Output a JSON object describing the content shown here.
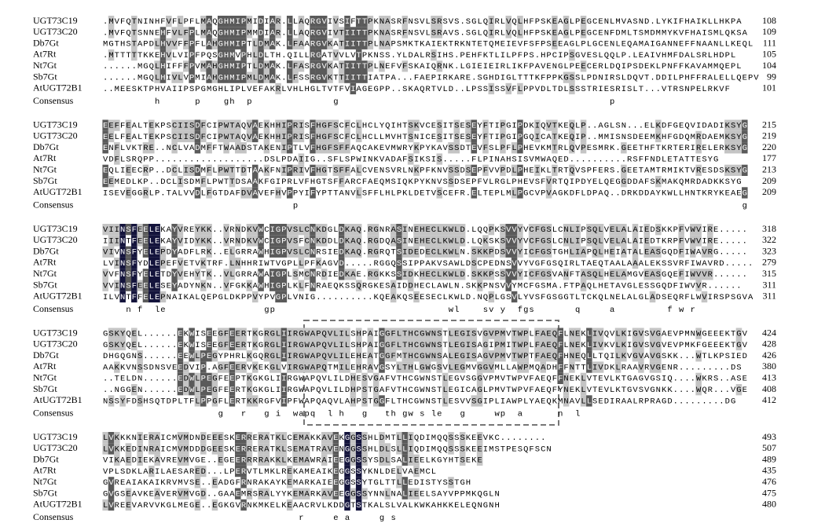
{
  "blocks": [
    {
      "rows": [
        {
          "name": "UGT73C19",
          "sequence": ".MVFQTNINHFVFLPFLMAQGHMIPMIDIAR.LLAQRGVIVSIFTTPKNASRFNSVLSRSVS.SGLQIRLVQLHFPSKEAGLPEGCENLMVASND.LYKIFHAIKLLHKPA",
          "end": "108"
        },
        {
          "name": "UGT73C20",
          "sequence": ".MVFQTSNNEHFVLFPLMAQGHMIPMMDIAR.LLAQRGVIVTIITTPKNASRFNSVLSRAVS.SGLQIRLVQLHFPSKEAGLPEGCENFDMLTSMDMMYKVFHAISMLQKSA",
          "end": "109"
        },
        {
          "name": "Db7Gt",
          "sequence": "MGTHSTAPDLHVVFFPFLAHGHMIPTLDMAK.LFAARGVKATIITTPLNAPSMKTKAIEKTRKNTETQMEIEVFSFPSEEAGLPLGCENLEQAMAIGANNEFFNAANLLKEQL",
          "end": "111"
        },
        {
          "name": "At7Rt",
          "sequence": ".MTTTTTKKEHVLVIPFPQSGHMVPHLDLTH.QILLRGATVVLVTPKNSS.YLDALRSIHS.PEHFKTLILPFPS.HPCIPSGVESLQQLP.LEAIVHMFDALSRLHDPL",
          "end": "105"
        },
        {
          "name": "Nt7Gt",
          "sequence": "......MGQLHIFFFPVMAHGHMIPTLDMAK.LFASRGVKATIITTPLNEFVFSKAIQRNK.LGIEIEIRLIKFPAVENGLPEECERLDQIPSDEKLPNFFKAVAMMQEPL",
          "end": "104"
        },
        {
          "name": "Sb7Gt",
          "sequence": "......MGQLHIVLVPMIAHGHMIPMLDMAK.LFSSRGVKTTIITTIATPA...FAEPIRKARE.SGHDIGLTTTKFPPKGSSLPDNIRSLDQVT.DDILPHFFRALELLQEPV",
          "end": "99"
        },
        {
          "name": "AtUGT72B1",
          "sequence": "..MEESKTPHVAIIPSPGMGHLIPLVEFAKRLVHLHGLTVTFVIAGEGPP..SKAQRTVLD..LPSSISSVFLPPVDLTDLSSSTRIESRISLT...VTRSNPELRKVF",
          "end": "101"
        }
      ],
      "consensus_label": "Consensus",
      "consensus": "         h      p    gh  p              g                                               p"
    },
    {
      "rows": [
        {
          "name": "UGT73C19",
          "sequence": "EEFFEALTEKPSCIISDFCIPWTAQVAEKHHIPRISFHGFSCFCLHCLYQIHTSKVCESITSESEYFTIPGIPDKIQVTKEQLP..AGLSN...ELKDFGEQVIDADIKSYG",
          "end": "215"
        },
        {
          "name": "UGT73C20",
          "sequence": "EELFEALTEKPSCIISDFCIPWTAQVAEKHHIPRISFHGFSCFCLHCLLMVHTSNICESITSESEYFTIPGIPGQICATKEQIP..MMISNSDEEMKHFGDQMRDAEMKSYG",
          "end": "219"
        },
        {
          "name": "Db7Gt",
          "sequence": "ENFLVKTRE..NCLVADMFFTWAADSTAKENIPTLVFHGFSFFAQCAKEVMWRYKPYKAVSSDTEVFSLPFLPHEVKMTRLQVPESMRK.GEETHFTKRTERIRELERKSYG",
          "end": "220"
        },
        {
          "name": "At7Rt",
          "sequence": "VDFLSRQPP...................DSLPDAIIG..SFLSPWINKVADAFSIKSIS.....FLPINAHSISVMWAQED..........RSFFNDLETATTESYG",
          "end": "177"
        },
        {
          "name": "Nt7Gt",
          "sequence": "EQLIEECRP..DCLISDMFLPWTTDTAAKFNIPRIVFHGTSFFALCVENSVRLNKPFKNVSSDSEPFVVPDLPHEIKLTRTQVSPFERS.GEETAMTRMIKTVRESDSKSYG",
          "end": "213"
        },
        {
          "name": "Sb7Gt",
          "sequence": "EEMEDLKP..DCLISDMFLPWTTDSAAKFGIPRLVFHGTSFFARCFAEQMSIQKPYKNVSSDSEPFVLRGLPHEVSFVRTQIPDYELQEGGDDAFSKMAKQMRDADKKSYG",
          "end": "209"
        },
        {
          "name": "AtUGT72B1",
          "sequence": "ISEVEGGRLP.TALVVDLFGTDAFDVAVEFHVPPYIFYPTTANVLSFFLHLPKLDETVSCEFR.ELTEPLMLPGCVPVAGKDFLDPAQ..DRKDDAYKWLLHNTKRYKEAEG",
          "end": "209"
        }
      ],
      "consensus_label": "Consensus",
      "consensus": "                                 p                                                                             g"
    },
    {
      "rows": [
        {
          "name": "UGT73C19",
          "sequence": "VIINSFEELEKAYVREYKK..VRNDKVWCIGPVSLCNKDGLDKAQ.RGNRASINEHECLKWLD.LQQPKSVVYVCFGSLCNLIPSQLVELALAIEDSKKPFVWVIRE.....",
          "end": "318"
        },
        {
          "name": "UGT73C20",
          "sequence": "IIINTFEELEKAYVIDYKK..VRNDKVWCIGPVSFCNKDDLDKAQ.RGDQASINEHECLKWLD.LQKSKSVVYVCFGSLCNLIPSQLVELALAIEDTKRPFVWVIRE.....",
          "end": "322"
        },
        {
          "name": "Db7Gt",
          "sequence": "VIVNSFYELEPDYADFLRK..ELGRRAWHIGPVSLCNRSIEDKAQ.RGRQTSIDEDECLKWLN.SKKPDSVVYICFGSTGHLIAPQLHEIATALEASGQDFIWAVRG.....",
          "end": "323"
        },
        {
          "name": "At7Rt",
          "sequence": "LVINSFYDLEPEFVETVKTRF.LNHHRIWTVGPLLPFKAGVD.....RGGQSSIPPAKVSAWLDSCPEDNSVVYVGFGSQIRLTAEQTAALAAALEKSSVRFIWAVRD.....",
          "end": "279"
        },
        {
          "name": "Nt7Gt",
          "sequence": "VVFNSFYELETDYVEHYTK..VLGRRAWAIGPLSMCNRDIEDKAE.RGKKSSIDKHECLKWLD.SKKPSSVVYICFGSVANFTASQLHELAMGVEASGQEFIWVVR......",
          "end": "315"
        },
        {
          "name": "Sb7Gt",
          "sequence": "VVINSFEELESEYADYNKN..VFGKKAWHIGPLKLFNRAEQKSSQRGKESAIDDHECLAWLN.SKKPNSVVYMCFGSMA.FTPAQLHETAVGLESSGQDFIWVVR......",
          "end": "311"
        },
        {
          "name": "AtUGT72B1",
          "sequence": "ILVNTFFELEPNAIKALQEPGLDKPPVYPVGPLVNIG..........KQEAKQSEESECLKWLD.NQPLGSVLYVSFGSGGTLTCKQLNELALGLADSEQRFLWVIRSPSGVA",
          "end": "311"
        }
      ],
      "consensus_label": "Consensus",
      "consensus": "    n f  le                 gp                              wl    sv y  fgs       q     a         f w r"
    },
    {
      "rows": [
        {
          "name": "UGT73C19",
          "sequence": "GSKYQEL......EKWISEEGFEERTKGRGLIIRGWAPQVLILSHPAIGGFLTHCGWNSTLEGISVGVPMVTWPLFAEQFLNEKLIVQVLKIGVSVGAEVPMNWGEEEKTGV",
          "end": "424"
        },
        {
          "name": "UGT73C20",
          "sequence": "GSKYQEL......EKWISEEGFEERTKGRGLIIRGWAPQVLILSHPAIGGFLTHCGWNSTLEGISAGIPMITWPLFAEQFLNEKLIVKVLKIGVSVGVEVPMKFGEEEKTGV",
          "end": "428"
        },
        {
          "name": "Db7Gt",
          "sequence": "DHGQGNS......EEWLPEGYPHRLKGQRGLIIRGWAPQVLILEHEATGGFMTHCGWNSALEGISAGVPMVTWPTFAEQFHNEQLLTQILKVGVAVGSKK...WTLKPSIED",
          "end": "426"
        },
        {
          "name": "At7Rt",
          "sequence": "AAKKVNSSDNSVEEDVIP.AGFEERVKEKGLVIRGWAPQTMILEHRAVGSYLTHLGWGSVLEGMVGGVMLLAWPMQADHFFNTTLIVDKLRAAVRVGENR.........DS",
          "end": "380"
        },
        {
          "name": "Nt7Gt",
          "sequence": "..TELDN......EDWLPEGFEEPTKGKGLIIRGWAPQVLILDHESVGAFVTHCGWNSTLEGVSGGVPMVTWPVFAEQFFNEKLVTEVLKTGAGVGSIQ....WKRS..ASE",
          "end": "413"
        },
        {
          "name": "Sb7Gt",
          "sequence": "..NGGEN......EDWLPEGFEERTKGKGLIIRGWAPQVLILDHPSTGAFVTHCGWNSTLEGICAGLPMVTWPVFAEQFYNEKLVTEVLKTGVSVGNKK....WQR...VGE",
          "end": "408"
        },
        {
          "name": "AtUGT72B1",
          "sequence": "NSSYFDSHSQTDPLTFLPPGFLERTKKRGFVIPFWAPQAQVLAHPSTGGFLTHCGWNSTLESVVSGIPLIAWPLYAEQKMNAVLLSEDIRAALRPRAGD.........DG",
          "end": "412"
        }
      ],
      "consensus_label": "Consensus",
      "consensus": "                    g   r   g i  wapq  l h   g   th gw s le   g     wp  a      n  l"
    },
    {
      "rows": [
        {
          "name": "UGT73C19",
          "sequence": "LVKKKNIERAICMVMDNDEEESKERRERATKLCEMAKKAVEKGGSSHLDMTLLIQDIMQQSSSKEEVKC........",
          "end": "493"
        },
        {
          "name": "UGT73C20",
          "sequence": "LVKKEDINRAICMVMDDDGEESKERRERATKLSEMATRAVENGGSSHLDLSLLIQDIMQQSSSKEEIMSTPESQFSCN",
          "end": "507"
        },
        {
          "name": "Db7Gt",
          "sequence": "VIKAEDIEKAVREVMVGE..EGEERRRRAKKLKEMAWRAIEEGGSSYSDLSALIEELKGYHTSEKE",
          "end": "489"
        },
        {
          "name": "At7Rt",
          "sequence": "VPLSDKLARILAESARED...LPERVTLMKLREKAMEAIKEGGSSYKNLDELVAEMCL",
          "end": "435"
        },
        {
          "name": "Nt7Gt",
          "sequence": "GVREAIAKAIKRVMVSE..EADGFRNRAKAYKEMARKAIEEGGSSYTGLTTLLEDISTYSSTGH",
          "end": "476"
        },
        {
          "name": "Sb7Gt",
          "sequence": "GVGSEAVKEAVERVMVGD..GAAEMRSRALYYKEMARKAVEEGGSSYNNLNALIEELSAYVPPMKQGLN",
          "end": "475"
        },
        {
          "name": "AtUGT72B1",
          "sequence": "LVREEVARVVKGLMEGE..EGKGVRNKMKELKEAACRVLKDDGTSTKALSLVALKWKAHKKELEQNGNH",
          "end": "480"
        }
      ],
      "consensus_label": "Consensus",
      "consensus": "                                  r     e a     g s"
    }
  ]
}
